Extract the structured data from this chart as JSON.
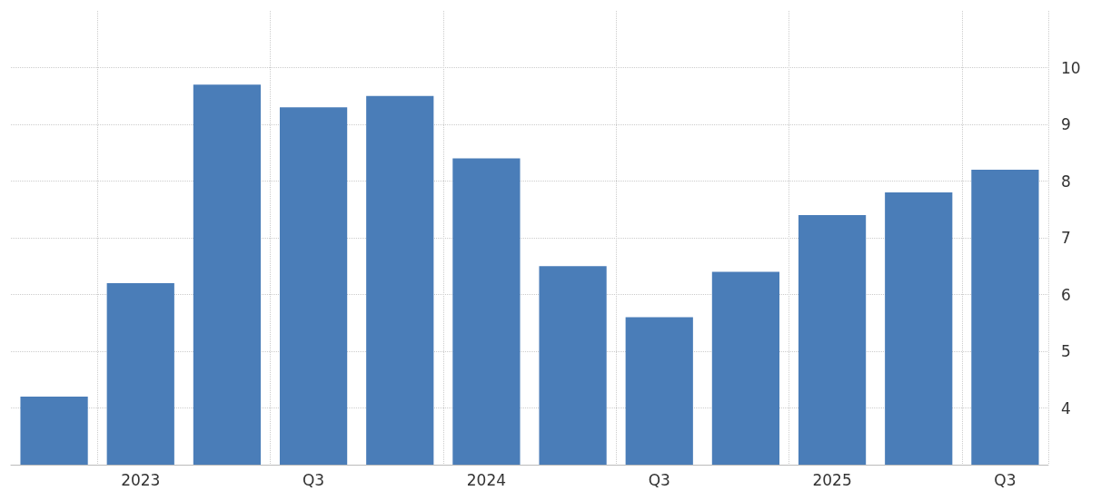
{
  "chart_data": {
    "type": "bar",
    "categories": [
      null,
      "2023",
      null,
      "Q3",
      null,
      "2024",
      null,
      "Q3",
      null,
      "2025",
      null,
      "Q3"
    ],
    "values": [
      4.2,
      6.2,
      9.7,
      9.3,
      9.5,
      8.4,
      6.5,
      5.6,
      6.4,
      7.4,
      7.8,
      8.2
    ],
    "color": "#4a7db8",
    "ylim": [
      3,
      11
    ],
    "yticks": [
      4,
      5,
      6,
      7,
      8,
      9,
      10
    ],
    "grid": true
  }
}
